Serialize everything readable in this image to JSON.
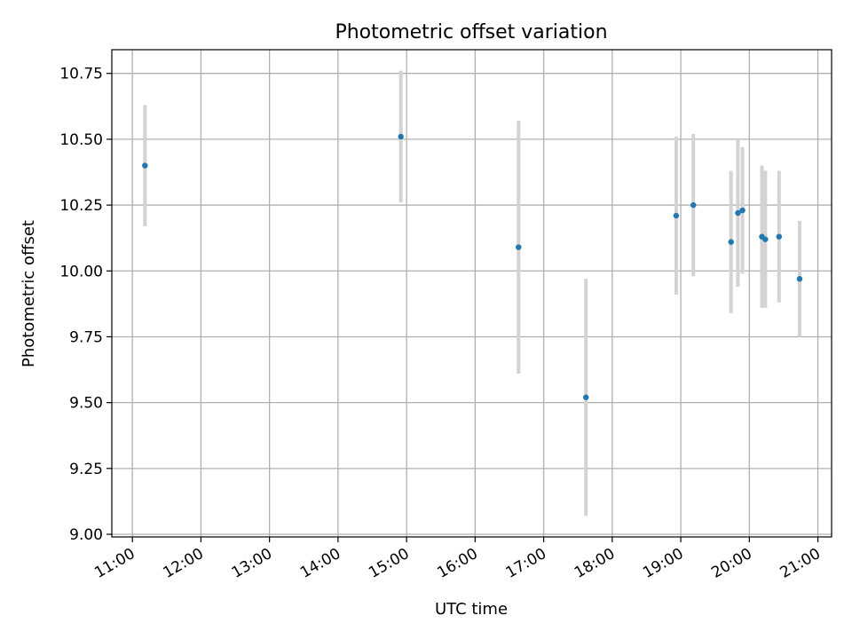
{
  "chart_data": {
    "type": "scatter",
    "title": "Photometric offset variation",
    "xlabel": "UTC time",
    "ylabel": "Photometric offset",
    "xlim": [
      "10:42",
      "21:12"
    ],
    "ylim": [
      8.99,
      10.84
    ],
    "x_ticks": [
      "11:00",
      "12:00",
      "13:00",
      "14:00",
      "15:00",
      "16:00",
      "17:00",
      "18:00",
      "19:00",
      "20:00",
      "21:00"
    ],
    "y_ticks": [
      "9.00",
      "9.25",
      "9.50",
      "9.75",
      "10.00",
      "10.25",
      "10.50",
      "10.75"
    ],
    "grid": true,
    "marker_color": "#1f77b4",
    "errorbar_color": "#d3d3d3",
    "points": [
      {
        "x": "11:11",
        "y": 10.4,
        "err": 0.23
      },
      {
        "x": "14:55",
        "y": 10.51,
        "err": 0.25
      },
      {
        "x": "16:38",
        "y": 10.09,
        "err": 0.48
      },
      {
        "x": "17:37",
        "y": 9.52,
        "err": 0.45
      },
      {
        "x": "18:56",
        "y": 10.21,
        "err": 0.3
      },
      {
        "x": "19:11",
        "y": 10.25,
        "err": 0.27
      },
      {
        "x": "19:44",
        "y": 10.11,
        "err": 0.27
      },
      {
        "x": "19:50",
        "y": 10.22,
        "err": 0.28
      },
      {
        "x": "19:54",
        "y": 10.23,
        "err": 0.24
      },
      {
        "x": "20:11",
        "y": 10.13,
        "err": 0.27
      },
      {
        "x": "20:14",
        "y": 10.12,
        "err": 0.26
      },
      {
        "x": "20:26",
        "y": 10.13,
        "err": 0.25
      },
      {
        "x": "20:44",
        "y": 9.97,
        "err": 0.22
      }
    ]
  }
}
